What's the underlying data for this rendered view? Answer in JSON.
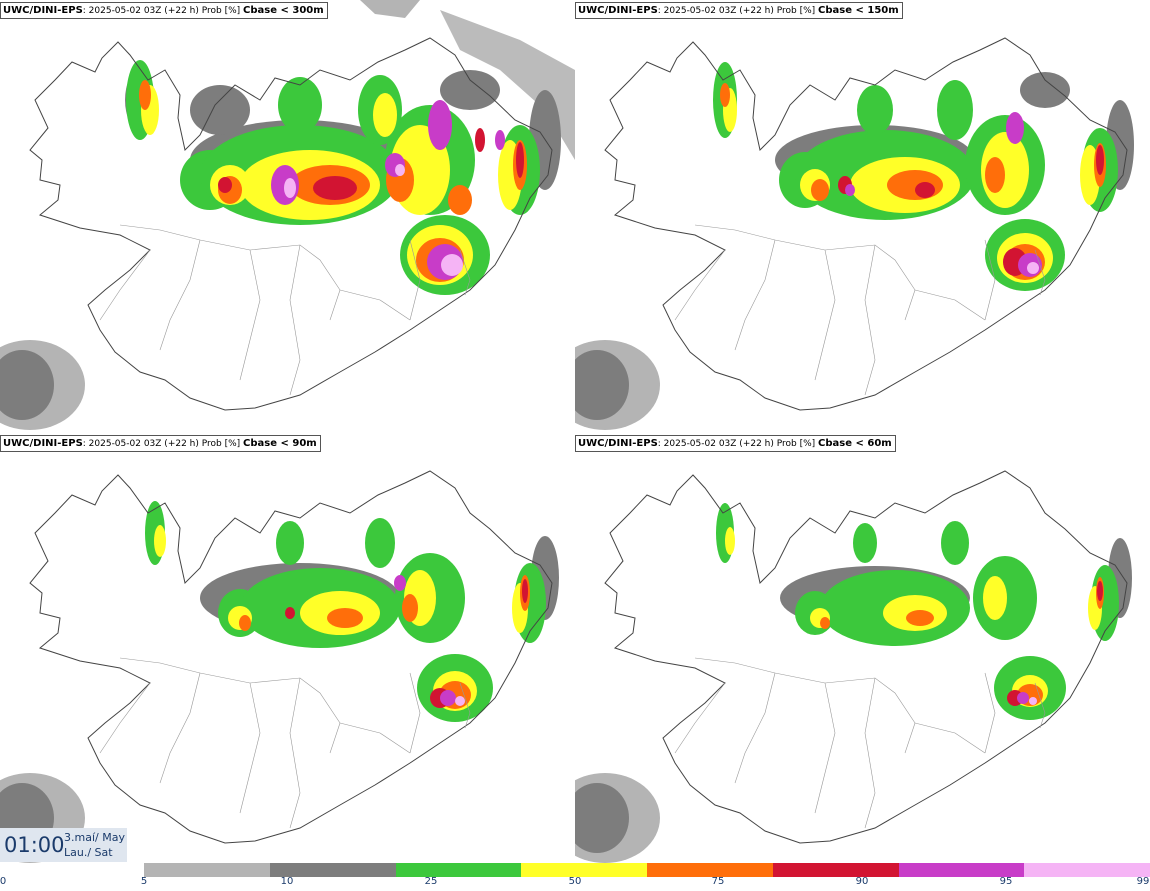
{
  "panels": [
    {
      "model": "UWC/DINI-EPS",
      "run": ": 2025-05-02 03Z (+22 h) Prob [%]",
      "threshold": "Cbase < 300m"
    },
    {
      "model": "UWC/DINI-EPS",
      "run": ": 2025-05-02 03Z (+22 h) Prob [%]",
      "threshold": "Cbase < 150m"
    },
    {
      "model": "UWC/DINI-EPS",
      "run": ": 2025-05-02 03Z (+22 h) Prob [%]",
      "threshold": "Cbase < 90m"
    },
    {
      "model": "UWC/DINI-EPS",
      "run": ": 2025-05-02 03Z (+22 h) Prob [%]",
      "threshold": "Cbase < 60m"
    }
  ],
  "valid_time": {
    "time": "01:00",
    "date_line1": "3.maí/ May",
    "date_line2": "Lau./ Sat"
  },
  "colorbar": {
    "ticks": [
      "0",
      "5",
      "10",
      "25",
      "50",
      "75",
      "90",
      "95",
      "99"
    ],
    "colors": [
      "#b4b4b4",
      "#7d7d7d",
      "#3cc83c",
      "#ffff28",
      "#ff6e0a",
      "#d21432",
      "#c83cc8",
      "#f5b4f5"
    ]
  }
}
